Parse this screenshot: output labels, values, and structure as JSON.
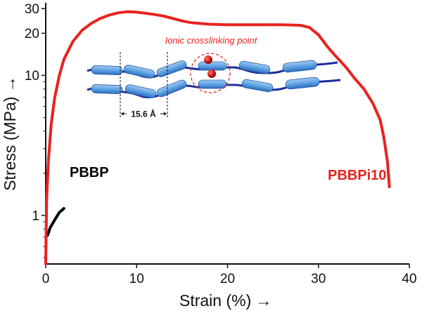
{
  "chart_data": {
    "type": "line",
    "title": "",
    "xlabel": "Strain (%)",
    "ylabel": "Stress (MPa)",
    "x_arrow": "→",
    "y_arrow": "→",
    "xlim": [
      0,
      40
    ],
    "ylim": [
      0.45,
      33
    ],
    "yscale": "log",
    "grid": false,
    "xticks": [
      0,
      10,
      20,
      30,
      40
    ],
    "xtick_labels": [
      "0",
      "10",
      "20",
      "30",
      "40"
    ],
    "yticks": [
      1,
      10,
      20,
      30
    ],
    "ytick_labels": [
      "1",
      "10",
      "20",
      "30"
    ],
    "series": [
      {
        "name": "PBBP",
        "color": "#000000",
        "x": [
          0.2,
          0.5,
          1.0,
          1.5,
          2.0
        ],
        "y": [
          0.72,
          0.82,
          0.93,
          1.05,
          1.12
        ]
      },
      {
        "name": "PBBPi10",
        "color": "#e8221e",
        "x": [
          0.0,
          0.1,
          0.3,
          0.6,
          1.0,
          1.5,
          2.0,
          3.0,
          4.0,
          5.0,
          6.0,
          7.0,
          8.0,
          9.0,
          10.0,
          11.0,
          12.0,
          13.0,
          14.0,
          15.0,
          16.0,
          17.0,
          18.0,
          20.0,
          22.0,
          24.0,
          26.0,
          28.0,
          29.0,
          30.0,
          31.0,
          32.0,
          33.0,
          34.0,
          35.0,
          36.0,
          36.8,
          37.2,
          37.6,
          37.8
        ],
        "y": [
          0.45,
          1.3,
          2.5,
          4.5,
          7.0,
          10.0,
          13.0,
          17.5,
          21.0,
          23.5,
          25.5,
          27.0,
          28.0,
          28.5,
          28.3,
          27.8,
          27.2,
          26.5,
          25.5,
          24.5,
          23.8,
          23.5,
          23.2,
          23.0,
          23.0,
          23.0,
          23.0,
          22.8,
          22.0,
          19.5,
          16.0,
          13.5,
          11.5,
          9.5,
          8.0,
          6.3,
          4.8,
          3.6,
          2.4,
          1.6
        ]
      }
    ],
    "annotations": {
      "crosslink_label": "Ionic crosslinking point",
      "spacing_label": "15.6 Å"
    }
  },
  "colors": {
    "pbbp": "#000000",
    "pbbpi10": "#e8221e",
    "segment_fill": "#6aaee8",
    "chain": "#1c2e9e",
    "ion": "#c81010"
  }
}
